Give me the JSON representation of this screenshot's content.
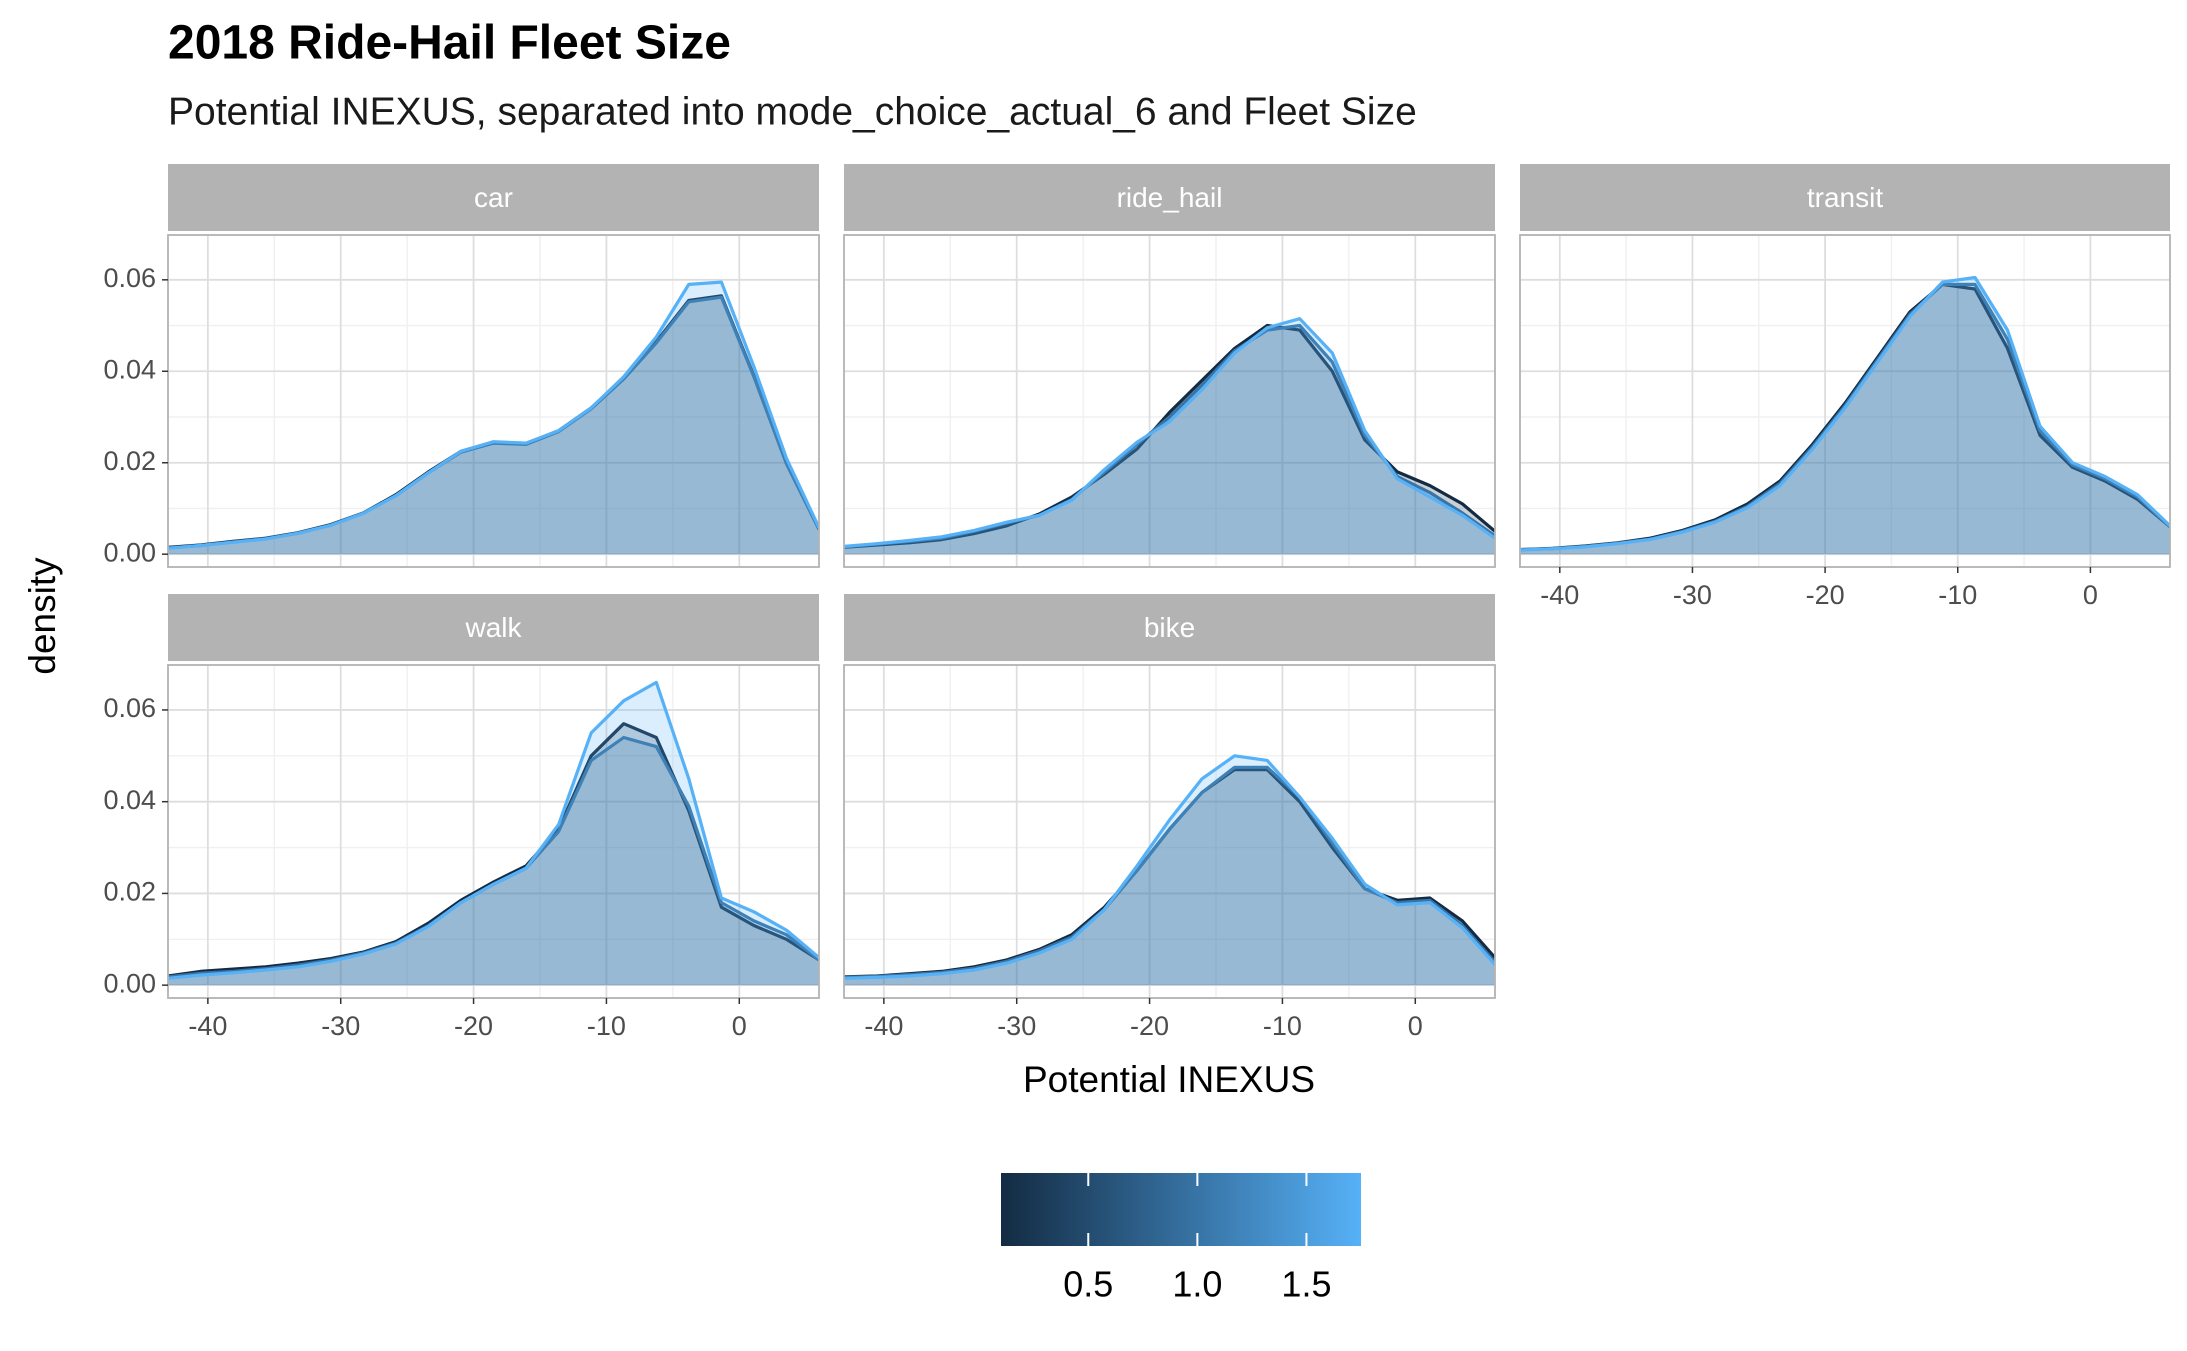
{
  "chart_data": {
    "type": "density",
    "title": "2018 Ride-Hail Fleet Size",
    "subtitle": "Potential INEXUS, separated into mode_choice_actual_6 and Fleet Size",
    "x_label": "Potential INEXUS",
    "y_label": "density",
    "x": [
      -43,
      -40.55,
      -38.1,
      -35.65,
      -33.2,
      -30.75,
      -28.3,
      -25.85,
      -23.4,
      -20.95,
      -18.5,
      -16.05,
      -13.6,
      -11.15,
      -8.7,
      -6.25,
      -3.8,
      -1.35,
      1.1,
      3.55,
      6
    ],
    "xlim": [
      -43,
      6
    ],
    "xticks": [
      -40,
      -30,
      -20,
      -10,
      0
    ],
    "ylim": [
      -0.0028,
      0.0698
    ],
    "yticks": [
      {
        "value": 0,
        "label": "0.00"
      },
      0.02,
      0.04,
      0.06
    ],
    "grid": true,
    "colorbar": {
      "low": "#132B43",
      "high": "#56B1F7",
      "limits": [
        0.1,
        1.75
      ],
      "ticks": [
        0.5,
        {
          "value": 1,
          "label": "1.0"
        },
        1.5
      ]
    },
    "panels": [
      {
        "title": "car",
        "series": [
          {
            "fleet_size": 0.1,
            "values": [
              0.0015,
              0.002,
              0.0028,
              0.0035,
              0.0047,
              0.0065,
              0.009,
              0.013,
              0.018,
              0.0225,
              0.0245,
              0.0242,
              0.027,
              0.032,
              0.0385,
              0.0465,
              0.0555,
              0.0565,
              0.039,
              0.02,
              0.0055
            ]
          },
          {
            "fleet_size": 1,
            "values": [
              0.0014,
              0.0019,
              0.0027,
              0.0034,
              0.0046,
              0.0064,
              0.009,
              0.0128,
              0.0178,
              0.0223,
              0.0243,
              0.024,
              0.0268,
              0.0318,
              0.0383,
              0.0462,
              0.0552,
              0.0562,
              0.0388,
              0.0198,
              0.0054
            ]
          },
          {
            "fleet_size": 1.75,
            "values": [
              0.0013,
              0.0019,
              0.0026,
              0.0033,
              0.0046,
              0.0063,
              0.0089,
              0.0128,
              0.0178,
              0.0225,
              0.0246,
              0.0243,
              0.027,
              0.032,
              0.0388,
              0.0475,
              0.059,
              0.0595,
              0.041,
              0.021,
              0.0058
            ]
          }
        ]
      },
      {
        "title": "ride_hail",
        "series": [
          {
            "fleet_size": 0.1,
            "values": [
              0.0015,
              0.002,
              0.0025,
              0.0032,
              0.0045,
              0.0062,
              0.0088,
              0.0125,
              0.0175,
              0.023,
              0.031,
              0.038,
              0.045,
              0.05,
              0.049,
              0.04,
              0.025,
              0.018,
              0.015,
              0.011,
              0.005
            ]
          },
          {
            "fleet_size": 1,
            "values": [
              0.0016,
              0.0022,
              0.0028,
              0.0035,
              0.005,
              0.0068,
              0.0085,
              0.012,
              0.018,
              0.024,
              0.03,
              0.037,
              0.0445,
              0.049,
              0.05,
              0.042,
              0.026,
              0.017,
              0.0135,
              0.009,
              0.004
            ]
          },
          {
            "fleet_size": 1.75,
            "values": [
              0.0017,
              0.0023,
              0.003,
              0.0038,
              0.0052,
              0.007,
              0.0085,
              0.0118,
              0.0185,
              0.0245,
              0.029,
              0.036,
              0.044,
              0.0495,
              0.0515,
              0.044,
              0.027,
              0.0165,
              0.0125,
              0.0085,
              0.0035
            ]
          }
        ]
      },
      {
        "title": "transit",
        "series": [
          {
            "fleet_size": 0.1,
            "values": [
              0.001,
              0.0013,
              0.0018,
              0.0025,
              0.0035,
              0.0052,
              0.0075,
              0.011,
              0.016,
              0.024,
              0.033,
              0.043,
              0.053,
              0.059,
              0.058,
              0.045,
              0.026,
              0.019,
              0.016,
              0.012,
              0.006
            ]
          },
          {
            "fleet_size": 1,
            "values": [
              0.001,
              0.0012,
              0.0017,
              0.0024,
              0.0033,
              0.005,
              0.0072,
              0.0105,
              0.0155,
              0.0235,
              0.0325,
              0.0425,
              0.0525,
              0.059,
              0.059,
              0.047,
              0.027,
              0.0195,
              0.0165,
              0.0125,
              0.006
            ]
          },
          {
            "fleet_size": 1.75,
            "values": [
              0.0009,
              0.0012,
              0.0016,
              0.0023,
              0.0032,
              0.0048,
              0.007,
              0.0102,
              0.015,
              0.023,
              0.032,
              0.042,
              0.052,
              0.0595,
              0.0605,
              0.049,
              0.028,
              0.02,
              0.017,
              0.013,
              0.0062
            ]
          }
        ]
      },
      {
        "title": "walk",
        "series": [
          {
            "fleet_size": 0.1,
            "values": [
              0.002,
              0.003,
              0.0035,
              0.004,
              0.0048,
              0.0058,
              0.0072,
              0.0095,
              0.0135,
              0.0185,
              0.0225,
              0.026,
              0.034,
              0.05,
              0.057,
              0.054,
              0.038,
              0.017,
              0.013,
              0.01,
              0.0055
            ]
          },
          {
            "fleet_size": 1,
            "values": [
              0.0018,
              0.0026,
              0.003,
              0.0036,
              0.0044,
              0.0055,
              0.007,
              0.0092,
              0.013,
              0.018,
              0.022,
              0.0255,
              0.0335,
              0.049,
              0.054,
              0.052,
              0.039,
              0.018,
              0.014,
              0.011,
              0.0055
            ]
          },
          {
            "fleet_size": 1.75,
            "values": [
              0.0015,
              0.0022,
              0.0027,
              0.0033,
              0.004,
              0.0052,
              0.0068,
              0.009,
              0.0128,
              0.018,
              0.022,
              0.0255,
              0.035,
              0.055,
              0.062,
              0.066,
              0.045,
              0.019,
              0.016,
              0.012,
              0.006
            ]
          }
        ]
      },
      {
        "title": "bike",
        "series": [
          {
            "fleet_size": 0.1,
            "values": [
              0.0018,
              0.002,
              0.0025,
              0.003,
              0.004,
              0.0055,
              0.0078,
              0.011,
              0.017,
              0.025,
              0.034,
              0.042,
              0.047,
              0.047,
              0.04,
              0.03,
              0.021,
              0.0185,
              0.019,
              0.014,
              0.006
            ]
          },
          {
            "fleet_size": 1,
            "values": [
              0.0017,
              0.0019,
              0.0023,
              0.0028,
              0.0037,
              0.0052,
              0.0075,
              0.0105,
              0.0165,
              0.025,
              0.034,
              0.042,
              0.0475,
              0.0475,
              0.041,
              0.031,
              0.021,
              0.018,
              0.0185,
              0.013,
              0.005
            ]
          },
          {
            "fleet_size": 1.75,
            "values": [
              0.0015,
              0.0017,
              0.002,
              0.0025,
              0.0033,
              0.0048,
              0.007,
              0.01,
              0.0165,
              0.026,
              0.036,
              0.045,
              0.05,
              0.049,
              0.041,
              0.032,
              0.022,
              0.0175,
              0.018,
              0.0125,
              0.0045
            ]
          }
        ]
      }
    ]
  }
}
